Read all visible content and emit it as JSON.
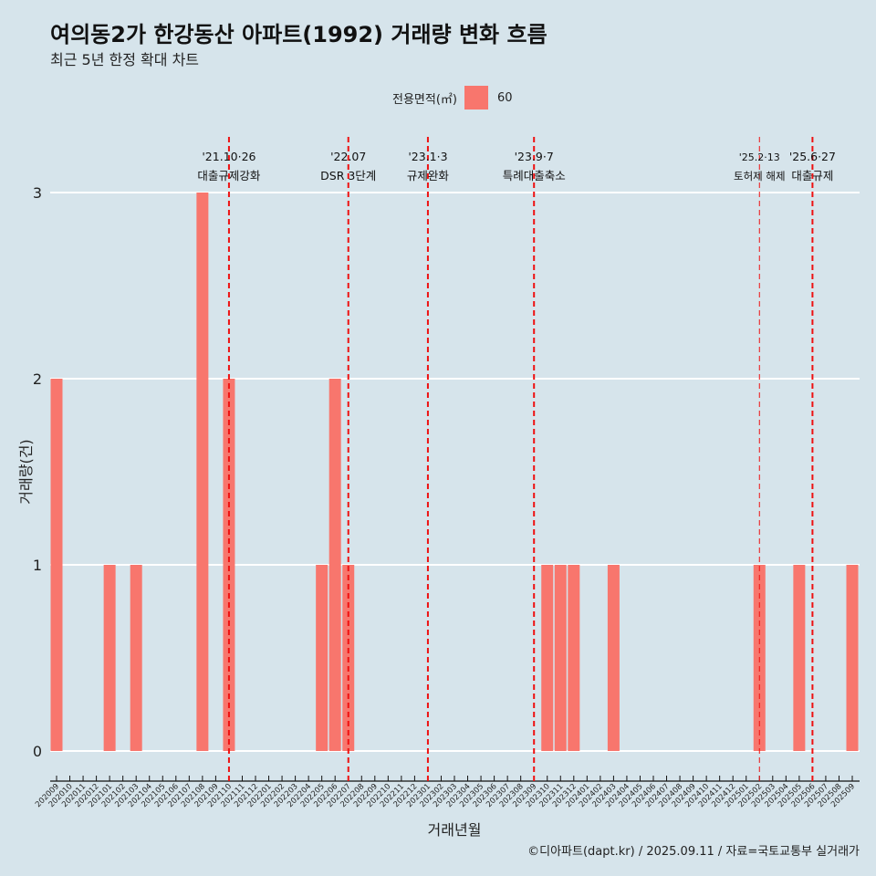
{
  "title": "여의동2가 한강동산 아파트(1992) 거래량 변화 흐름",
  "subtitle": "최근 5년 한정 확대 차트",
  "caption": "©디아파트(dapt.kr) / 2025.09.11 / 자료=국토교통부 실거래가",
  "colors": {
    "bar": "#f8766d",
    "vline": "#ee1111",
    "grid": "#ffffff",
    "background": "#d6e4eb"
  },
  "chart_data": {
    "type": "bar",
    "xlabel": "거래년월",
    "ylabel": "거래량(건)",
    "ylim": [
      0,
      3
    ],
    "yticks": [
      0,
      1,
      2,
      3
    ],
    "legend": {
      "title": "전용면적(㎡)",
      "entries": [
        "60"
      ],
      "placement": "top"
    },
    "categories": [
      "202009",
      "202010",
      "202011",
      "202012",
      "202101",
      "202102",
      "202103",
      "202104",
      "202105",
      "202106",
      "202107",
      "202108",
      "202109",
      "202110",
      "202111",
      "202112",
      "202201",
      "202202",
      "202203",
      "202204",
      "202205",
      "202206",
      "202207",
      "202208",
      "202209",
      "202210",
      "202211",
      "202212",
      "202301",
      "202302",
      "202303",
      "202304",
      "202305",
      "202306",
      "202307",
      "202308",
      "202309",
      "202310",
      "202311",
      "202312",
      "202401",
      "202402",
      "202403",
      "202404",
      "202405",
      "202406",
      "202407",
      "202408",
      "202409",
      "202410",
      "202411",
      "202412",
      "202501",
      "202502",
      "202503",
      "202504",
      "202505",
      "202506",
      "202507",
      "202508",
      "202509"
    ],
    "series": [
      {
        "name": "60",
        "values": [
          2,
          0,
          0,
          0,
          1,
          0,
          1,
          0,
          0,
          0,
          0,
          3,
          0,
          2,
          0,
          0,
          0,
          0,
          0,
          0,
          1,
          2,
          1,
          0,
          0,
          0,
          0,
          0,
          0,
          0,
          0,
          0,
          0,
          0,
          0,
          0,
          0,
          1,
          1,
          1,
          0,
          0,
          1,
          0,
          0,
          0,
          0,
          0,
          0,
          0,
          0,
          0,
          0,
          1,
          0,
          0,
          1,
          0,
          0,
          0,
          1
        ]
      }
    ],
    "annotations": [
      {
        "at": "202110",
        "date": "'21.10·26",
        "label": "대출규제강화",
        "style": "dashed"
      },
      {
        "at": "202207",
        "date": "'22.07",
        "label": "DSR 3단계",
        "style": "dashed"
      },
      {
        "at": "202301",
        "date": "'23.1·3",
        "label": "규제완화",
        "style": "dashed"
      },
      {
        "at": "202309",
        "date": "'23.9·7",
        "label": "특례대출축소",
        "style": "dashed"
      },
      {
        "at": "202502",
        "date": "'25.2·13",
        "label": "토허제 해제",
        "style": "thin"
      },
      {
        "at": "202506",
        "date": "'25.6·27",
        "label": "대출규제",
        "style": "dashed"
      }
    ]
  }
}
